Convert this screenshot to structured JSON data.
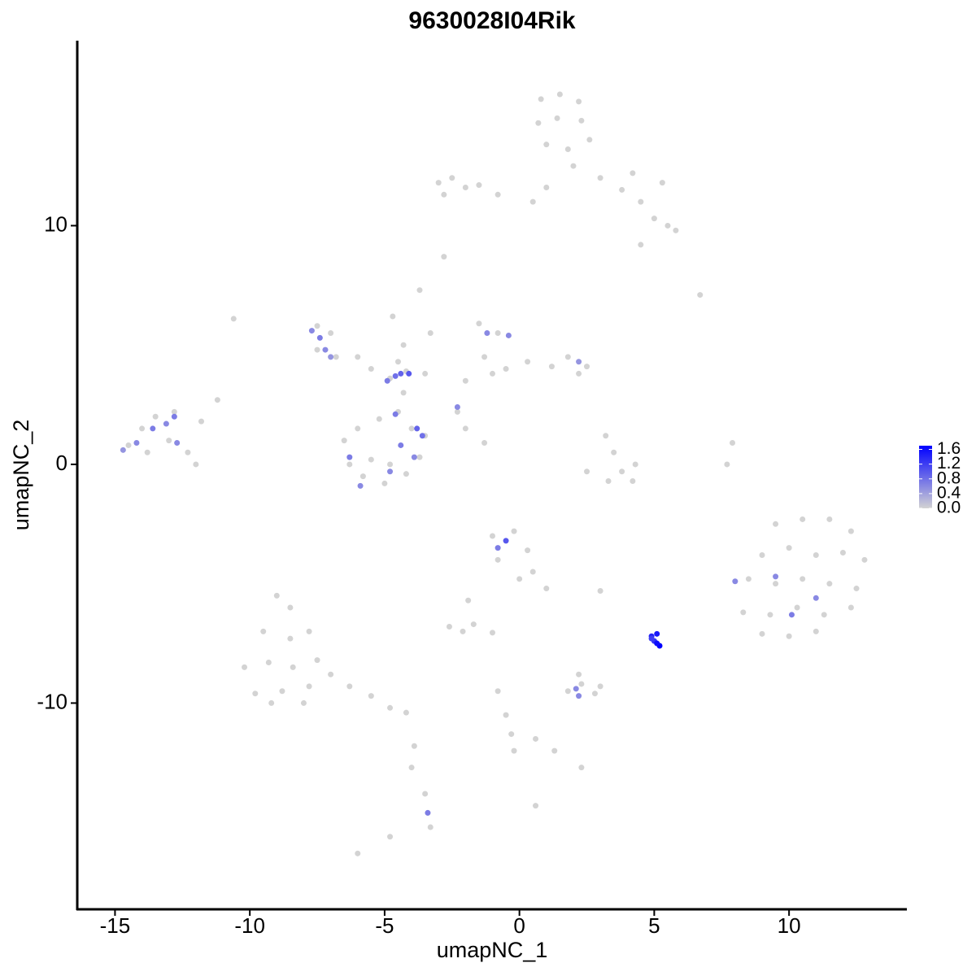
{
  "chart_data": {
    "type": "scatter",
    "title": "9630028I04Rik",
    "xlabel": "umapNC_1",
    "ylabel": "umapNC_2",
    "xlim": [
      -16.4,
      14.37
    ],
    "ylim": [
      -18.64,
      17.75
    ],
    "xticks": [
      -15,
      -10,
      -5,
      0,
      5,
      10
    ],
    "yticks": [
      -10,
      0,
      10
    ],
    "low_color": "#d3d3d3",
    "high_color": "#0000ff",
    "colorlim": [
      0,
      1.7
    ],
    "colorticks": [
      {
        "value": 0,
        "label": "0.0"
      },
      0.4,
      0.8,
      1.2,
      1.6
    ],
    "x": [
      0.8,
      1.5,
      2.2,
      0.7,
      1.4,
      2.3,
      1.0,
      1.8,
      2.6,
      2.0,
      3.0,
      3.8,
      4.5,
      5.5,
      5.8,
      4.5,
      5.0,
      4.2,
      5.3,
      -3.0,
      -2.5,
      -2.0,
      -1.5,
      -0.8,
      -2.8,
      0.5,
      1.0,
      -2.8,
      -7.5,
      -7.0,
      -7.5,
      -6.8,
      -6.0,
      -5.5,
      -4.8,
      -4.2,
      -3.5,
      -4.5,
      -4.7,
      -4.3,
      -4.5,
      -4.0,
      -4.3,
      -6.5,
      -6.3,
      -5.8,
      -5.0,
      -4.2,
      -3.7,
      -3.5,
      -3.8,
      -5.5,
      -4.8,
      -6.0,
      -5.2,
      -14.5,
      -14.0,
      -13.5,
      -12.8,
      -13.0,
      -12.3,
      -13.8,
      -12.0,
      -11.2,
      -11.8,
      -1.5,
      -0.8,
      -1.3,
      -0.5,
      0.3,
      1.2,
      1.8,
      2.2,
      2.5,
      -2.0,
      -1.0,
      -2.3,
      3.2,
      3.5,
      3.8,
      3.3,
      2.5,
      4.2,
      4.3,
      7.9,
      7.7,
      -2.0,
      -1.3,
      9.5,
      10.5,
      11.5,
      12.3,
      9.0,
      10.0,
      11.0,
      12.0,
      12.8,
      8.5,
      9.5,
      10.5,
      11.5,
      12.5,
      8.3,
      9.3,
      10.3,
      11.3,
      12.3,
      9.0,
      10.0,
      11.0,
      -1.0,
      -0.2,
      0.3,
      -0.8,
      0.5,
      1.0,
      0.0,
      -9.0,
      -8.5,
      -9.5,
      -8.5,
      -7.8,
      -10.2,
      -9.3,
      -8.4,
      -7.5,
      -9.8,
      -8.8,
      -7.8,
      -7.0,
      -6.3,
      -5.5,
      -4.8,
      -4.2,
      -9.2,
      -8.0,
      -2.6,
      -2.1,
      -1.7,
      -1.9,
      -1.0,
      1.8,
      2.3,
      2.8,
      3.0,
      2.2,
      -0.8,
      -0.5,
      -0.3,
      -0.2,
      2.3,
      1.3,
      0.6,
      -3.5,
      -3.4,
      -3.3,
      -6.0,
      -4.8,
      0.6,
      -3.9,
      -4.0,
      -10.6,
      6.7,
      -3.7,
      -3.3,
      3.0,
      -7.7,
      -7.4,
      -7.2,
      -7.0,
      -4.9,
      -4.6,
      -4.4,
      -4.1,
      -4.6,
      -3.8,
      -3.6,
      -3.9,
      -4.4,
      -4.8,
      -5.9,
      -6.3,
      -14.7,
      -14.2,
      -13.6,
      -13.1,
      -12.8,
      -12.7,
      -1.2,
      -0.4,
      2.2,
      -2.3,
      -0.5,
      -0.8,
      2.1,
      2.2,
      8.0,
      9.5,
      11.0,
      10.1,
      -3.4,
      4.9,
      5.1,
      5.0,
      5.2,
      5.1,
      4.9
    ],
    "y": [
      15.3,
      15.5,
      15.2,
      14.3,
      14.5,
      14.4,
      13.4,
      13.2,
      13.6,
      12.5,
      12.0,
      11.5,
      11.0,
      10.0,
      9.8,
      9.2,
      10.3,
      12.2,
      11.8,
      11.8,
      12.0,
      11.6,
      11.7,
      11.3,
      11.3,
      11.0,
      11.6,
      8.7,
      5.8,
      5.5,
      4.8,
      4.5,
      4.5,
      4.0,
      3.6,
      3.9,
      3.8,
      4.3,
      6.2,
      5.0,
      2.2,
      1.5,
      3.0,
      1.0,
      0.0,
      -0.5,
      -0.8,
      -0.4,
      0.3,
      1.2,
      1.5,
      0.2,
      0.0,
      1.5,
      1.9,
      0.8,
      1.5,
      2.0,
      2.2,
      1.0,
      0.5,
      0.5,
      0.0,
      2.7,
      1.8,
      5.9,
      5.5,
      4.5,
      4.0,
      4.3,
      4.1,
      4.5,
      3.8,
      4.1,
      3.5,
      3.8,
      2.2,
      1.2,
      0.5,
      -0.3,
      -0.7,
      -0.3,
      -0.7,
      0.0,
      0.9,
      0.0,
      1.5,
      0.9,
      -2.5,
      -2.3,
      -2.3,
      -2.8,
      -3.8,
      -3.5,
      -3.8,
      -3.7,
      -4.0,
      -4.8,
      -5.0,
      -4.8,
      -5.0,
      -5.2,
      -6.2,
      -6.3,
      -6.0,
      -6.3,
      -6.0,
      -7.1,
      -7.2,
      -7.0,
      -3.0,
      -2.8,
      -3.6,
      -4.0,
      -4.5,
      -5.2,
      -4.8,
      -5.5,
      -6.0,
      -7.0,
      -7.3,
      -7.0,
      -8.5,
      -8.3,
      -8.5,
      -8.2,
      -9.6,
      -9.5,
      -9.3,
      -8.8,
      -9.3,
      -9.7,
      -10.2,
      -10.4,
      -10.0,
      -10.0,
      -6.8,
      -7.0,
      -6.7,
      -5.7,
      -7.05,
      -9.5,
      -9.2,
      -9.6,
      -9.3,
      -8.8,
      -9.5,
      -10.5,
      -11.3,
      -12.0,
      -12.7,
      -12.0,
      -11.5,
      -13.8,
      -14.6,
      -15.2,
      -16.3,
      -15.6,
      -14.3,
      -11.8,
      -12.7,
      6.1,
      7.1,
      7.3,
      5.5,
      -5.3,
      5.6,
      5.3,
      4.8,
      4.5,
      3.5,
      3.7,
      3.8,
      3.8,
      2.1,
      1.5,
      1.2,
      0.3,
      0.8,
      -0.3,
      -0.9,
      0.3,
      0.6,
      0.9,
      1.5,
      1.7,
      2.0,
      0.9,
      5.5,
      5.4,
      4.3,
      2.4,
      -3.2,
      -3.5,
      -9.4,
      -9.7,
      -4.9,
      -4.7,
      -5.6,
      -6.3,
      -14.6,
      -7.2,
      -7.1,
      -7.4,
      -7.6,
      -7.5,
      -7.3
    ],
    "values": [
      0,
      0,
      0,
      0,
      0,
      0,
      0,
      0,
      0,
      0,
      0,
      0,
      0,
      0,
      0,
      0,
      0,
      0,
      0,
      0,
      0,
      0,
      0,
      0,
      0,
      0,
      0,
      0,
      0,
      0,
      0,
      0,
      0,
      0,
      0,
      0,
      0,
      0,
      0,
      0,
      0,
      0,
      0,
      0,
      0,
      0,
      0,
      0,
      0,
      0,
      0,
      0,
      0,
      0,
      0,
      0,
      0,
      0,
      0,
      0,
      0,
      0,
      0,
      0,
      0,
      0,
      0,
      0,
      0,
      0,
      0,
      0,
      0,
      0,
      0,
      0,
      0,
      0,
      0,
      0,
      0,
      0,
      0,
      0,
      0,
      0,
      0,
      0,
      0,
      0,
      0,
      0,
      0,
      0,
      0,
      0,
      0,
      0,
      0,
      0,
      0,
      0,
      0,
      0,
      0,
      0,
      0,
      0,
      0,
      0,
      0,
      0,
      0,
      0,
      0,
      0,
      0,
      0,
      0,
      0,
      0,
      0,
      0,
      0,
      0,
      0,
      0,
      0,
      0,
      0,
      0,
      0,
      0,
      0,
      0,
      0,
      0,
      0,
      0,
      0,
      0,
      0,
      0,
      0,
      0,
      0,
      0,
      0,
      0,
      0,
      0,
      0,
      0,
      0,
      0,
      0,
      0,
      0,
      0,
      0,
      0,
      0,
      0,
      0,
      0,
      0,
      0.6,
      0.7,
      0.6,
      0.5,
      0.7,
      0.8,
      0.9,
      1.0,
      0.7,
      0.9,
      0.8,
      0.6,
      0.7,
      0.6,
      0.6,
      0.7,
      0.5,
      0.6,
      0.7,
      0.6,
      0.7,
      0.6,
      0.6,
      0.6,
      0.5,
      0.6,
      1.0,
      0.7,
      0.6,
      0.6,
      0.6,
      0.6,
      0.6,
      0.7,
      0.7,
      1.4,
      1.5,
      1.3,
      1.7,
      1.6,
      1.2
    ]
  }
}
